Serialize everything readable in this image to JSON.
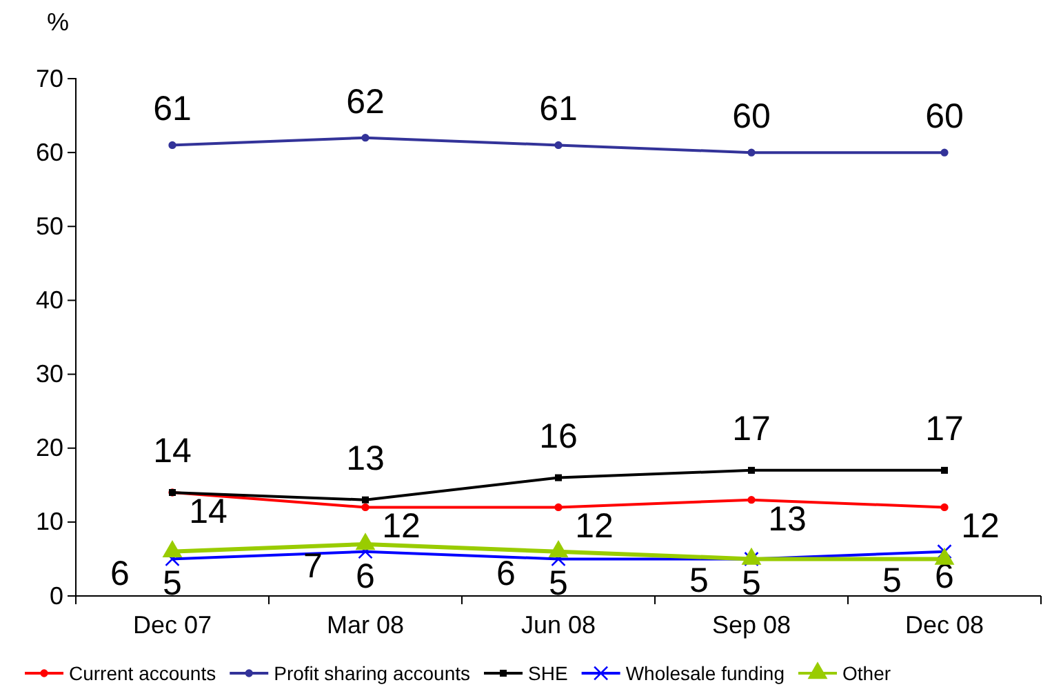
{
  "chart_data": {
    "type": "line",
    "ylabel": "%",
    "categories": [
      "Dec 07",
      "Mar 08",
      "Jun 08",
      "Sep 08",
      "Dec 08"
    ],
    "series": [
      {
        "name": "Current accounts",
        "color": "#ff0000",
        "values": [
          14,
          12,
          12,
          13,
          12
        ],
        "marker": "circle"
      },
      {
        "name": "Profit sharing accounts",
        "color": "#333399",
        "values": [
          61,
          62,
          61,
          60,
          60
        ],
        "marker": "circle"
      },
      {
        "name": "SHE",
        "color": "#000000",
        "values": [
          14,
          13,
          16,
          17,
          17
        ],
        "marker": "square"
      },
      {
        "name": "Wholesale funding",
        "color": "#0000ff",
        "values": [
          5,
          6,
          5,
          5,
          6
        ],
        "marker": "cross"
      },
      {
        "name": "Other",
        "color": "#99cc00",
        "values": [
          6,
          7,
          6,
          5,
          5
        ],
        "marker": "triangle"
      }
    ],
    "ylim": [
      0,
      70
    ],
    "yticks": [
      0,
      10,
      20,
      30,
      40,
      50,
      60,
      70
    ],
    "data_labels": true,
    "legend": "bottom",
    "grid": false,
    "line_style": "solid"
  }
}
